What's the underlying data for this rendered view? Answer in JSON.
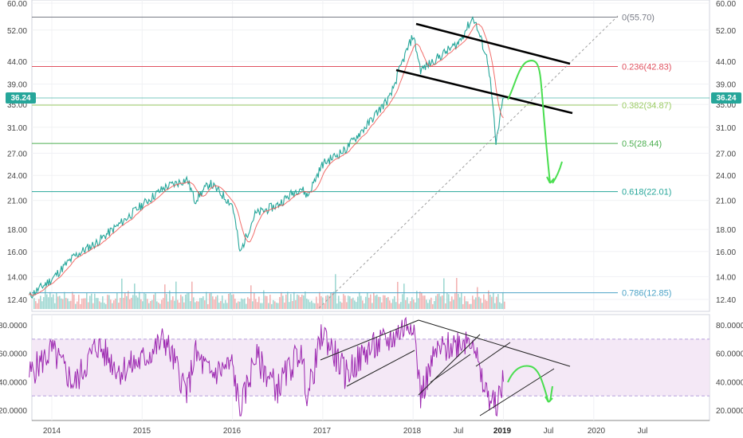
{
  "chart_data": [
    {
      "type": "line",
      "panel": "price",
      "y_scale": "log",
      "ylim": [
        11.8,
        60
      ],
      "y_ticks": [
        "60.00",
        "52.00",
        "44.00",
        "39.00",
        "35.00",
        "31.00",
        "27.00",
        "24.00",
        "21.00",
        "18.00",
        "16.00",
        "14.00",
        "12.40"
      ],
      "y_tick_values": [
        60,
        52,
        44,
        39,
        35,
        31,
        27,
        24,
        21,
        18,
        16,
        14,
        12.4
      ],
      "x_ticks": [
        "2014",
        "2015",
        "2016",
        "2017",
        "2018",
        "Jul",
        "2019",
        "Jul",
        "2020",
        "Jul"
      ],
      "current_price": {
        "label": "36.24",
        "value": 36.24,
        "color": "#26a69a"
      },
      "series": [
        {
          "color": "#26a69a",
          "x": [
            "2013-10",
            "2014-01",
            "2014-04",
            "2014-07",
            "2014-10",
            "2015-01",
            "2015-04",
            "2015-07",
            "2015-08",
            "2015-10",
            "2016-01",
            "2016-02",
            "2016-04",
            "2016-07",
            "2016-10",
            "2016-11",
            "2017-01",
            "2017-04",
            "2017-07",
            "2017-10",
            "2018-01",
            "2018-02",
            "2018-04",
            "2018-07",
            "2018-09",
            "2018-10",
            "2018-11",
            "2018-12",
            "2019-01"
          ],
          "y": [
            12.6,
            13.8,
            15.6,
            16.8,
            18.5,
            20.5,
            22.5,
            23.5,
            21.0,
            23.0,
            20.5,
            15.8,
            19.5,
            20.5,
            22.5,
            21.5,
            25.5,
            27.5,
            31.5,
            36.5,
            50.5,
            42.0,
            44.5,
            48.5,
            55.7,
            49.5,
            43.5,
            28.2,
            36.24
          ]
        }
      ],
      "fibonacci": [
        {
          "label": "0(55.70)",
          "level": 0,
          "value": 55.7,
          "color": "#787b86"
        },
        {
          "label": "0.236(42.83)",
          "level": 0.236,
          "value": 42.83,
          "color": "#e05260"
        },
        {
          "label": "0.382(34.87)",
          "level": 0.382,
          "value": 34.87,
          "color": "#9ccc65"
        },
        {
          "label": "0.5(28.44)",
          "level": 0.5,
          "value": 28.44,
          "color": "#4caf50"
        },
        {
          "label": "0.618(22.01)",
          "level": 0.618,
          "value": 22.01,
          "color": "#26a69a"
        },
        {
          "label": "0.786(12.85)",
          "level": 0.786,
          "value": 12.85,
          "color": "#4da3c7"
        }
      ],
      "volume": {
        "colors": [
          "#ef9a9a",
          "#80cbc4"
        ]
      },
      "annotations": [
        "channel-lines",
        "projection-arrow",
        "dashed-trendline"
      ]
    },
    {
      "type": "line",
      "panel": "oscillator",
      "ylim": [
        14,
        88
      ],
      "y_ticks": [
        "80.0000",
        "60.0000",
        "40.0000",
        "20.0000"
      ],
      "y_tick_values": [
        80,
        60,
        40,
        20
      ],
      "band": [
        30,
        70
      ],
      "band_color": "#e1bee7",
      "series": [
        {
          "color": "#9c27b0",
          "x": [
            "2013-10",
            "2014-01",
            "2014-04",
            "2014-07",
            "2014-10",
            "2015-01",
            "2015-04",
            "2015-07",
            "2015-08",
            "2015-10",
            "2016-01",
            "2016-02",
            "2016-04",
            "2016-07",
            "2016-10",
            "2016-11",
            "2017-01",
            "2017-04",
            "2017-07",
            "2017-10",
            "2018-01",
            "2018-02",
            "2018-04",
            "2018-07",
            "2018-09",
            "2018-10",
            "2018-11",
            "2018-12",
            "2019-01"
          ],
          "y": [
            45,
            62,
            38,
            66,
            48,
            55,
            70,
            32,
            60,
            45,
            52,
            18,
            58,
            35,
            62,
            30,
            75,
            45,
            62,
            70,
            84,
            30,
            60,
            68,
            72,
            40,
            30,
            22,
            40
          ]
        }
      ]
    }
  ]
}
